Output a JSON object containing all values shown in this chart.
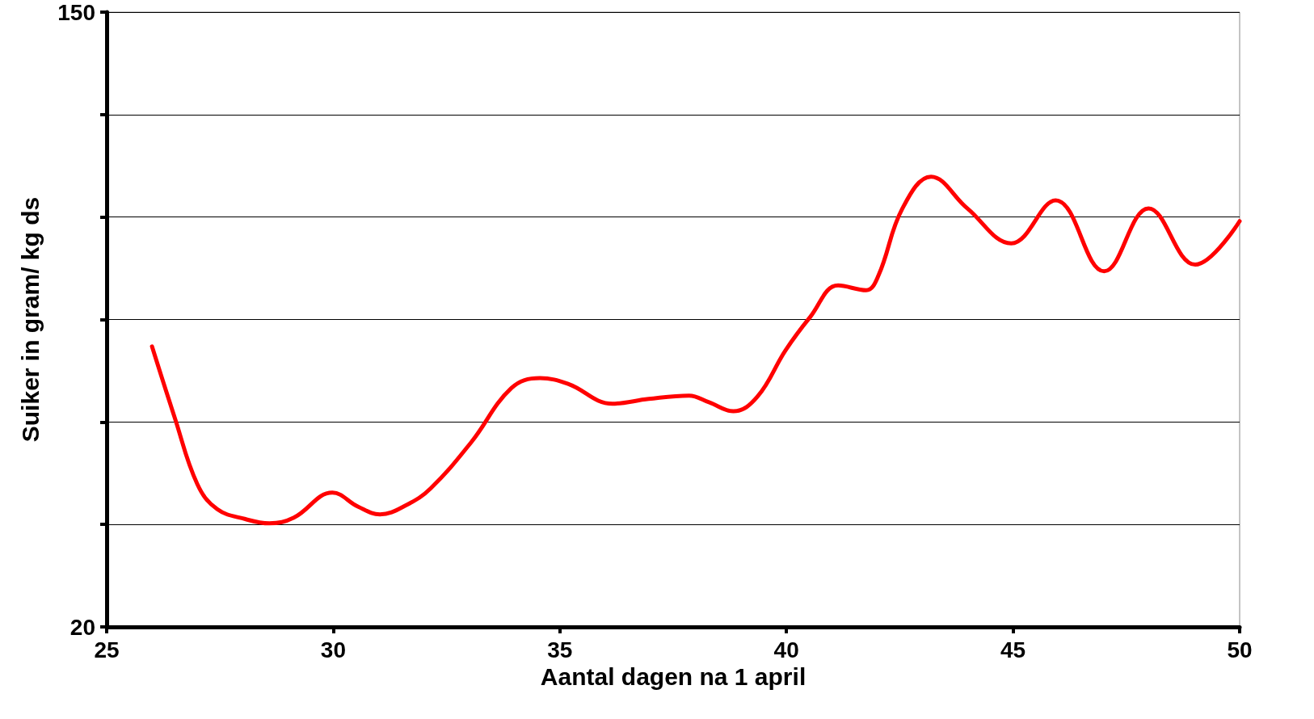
{
  "chart_data": {
    "type": "line",
    "xlabel": "Aantal dagen na 1 april",
    "ylabel": "Suiker in gram/ kg ds",
    "x": [
      26.0,
      26.5,
      27.0,
      27.44,
      28.06,
      28.59,
      29.13,
      29.98,
      30.55,
      31.03,
      31.62,
      32.15,
      33.04,
      33.93,
      34.56,
      35.18,
      36.16,
      36.96,
      37.85,
      38.29,
      38.83,
      39.36,
      39.98,
      40.52,
      41.14,
      41.76,
      42.03,
      42.56,
      43.19,
      43.99,
      44.96,
      45.94,
      47.01,
      47.99,
      49.02,
      50.0
    ],
    "series": [
      {
        "color": "#ff0000",
        "values": [
          79.3,
          64.3,
          50.2,
          44.9,
          42.8,
          41.9,
          43.1,
          48.4,
          45.4,
          43.8,
          45.8,
          49.3,
          59.0,
          70.5,
          72.6,
          71.4,
          67.2,
          68.2,
          68.9,
          67.5,
          65.6,
          68.7,
          78.5,
          85.5,
          92.2,
          91.2,
          94.3,
          108.5,
          115.2,
          108.5,
          101.1,
          110.2,
          95.2,
          108.5,
          96.6,
          105.8
        ]
      }
    ],
    "xlim": [
      25,
      50
    ],
    "xticks": [
      25,
      30,
      35,
      40,
      45,
      50
    ],
    "ylim": [
      20,
      150
    ],
    "yticks": [
      20,
      {
        "value": 41.67,
        "label": null
      },
      {
        "value": 63.33,
        "label": null
      },
      {
        "value": 85,
        "label": null
      },
      {
        "value": 106.67,
        "label": null
      },
      {
        "value": 128.33,
        "label": null
      },
      150
    ],
    "grid": "y",
    "marker": "none",
    "line_style": "solid"
  }
}
